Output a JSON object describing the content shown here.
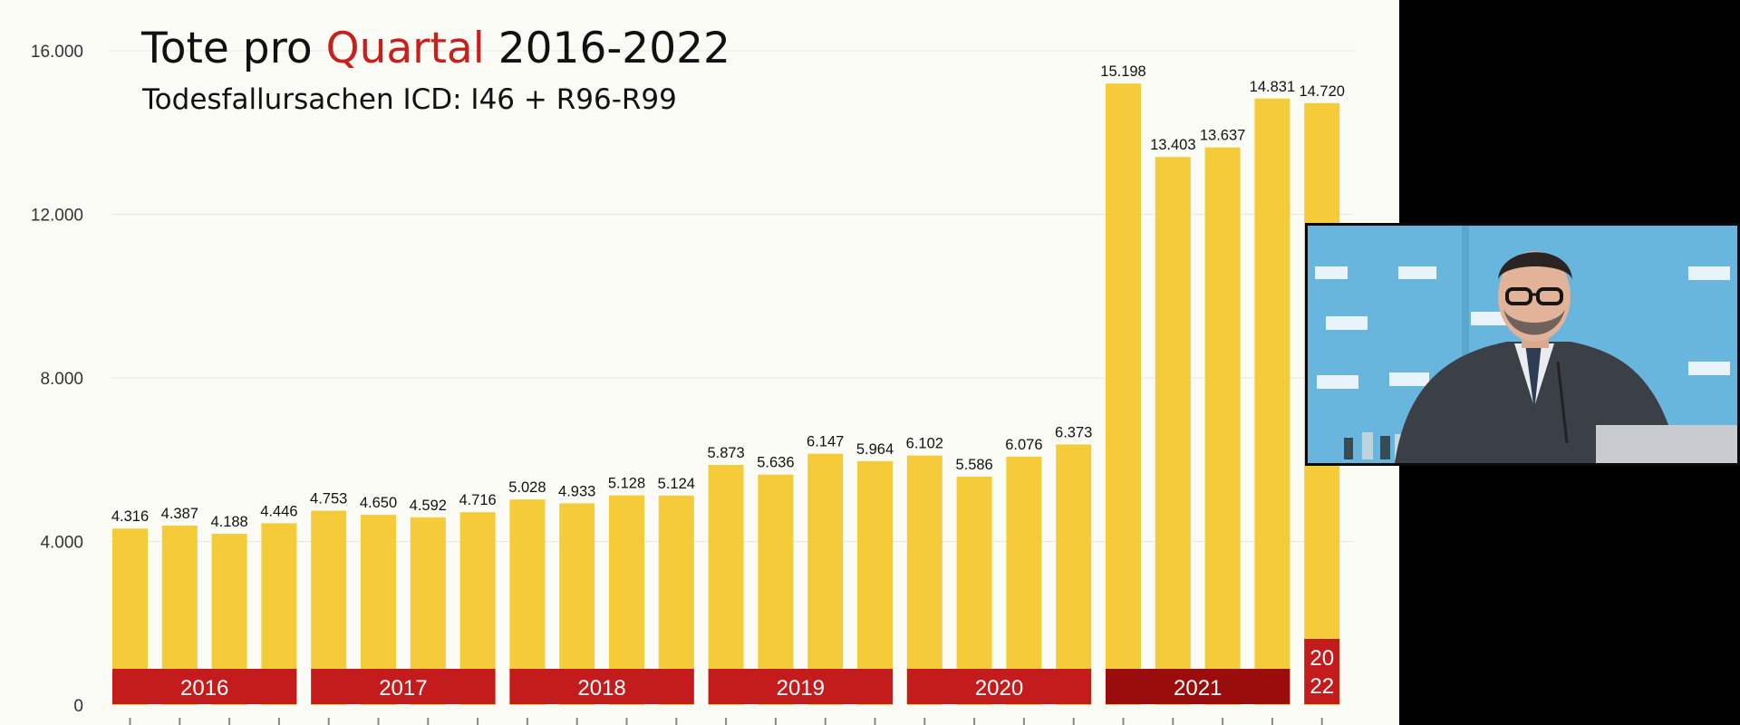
{
  "chart_data": {
    "type": "bar",
    "title_parts": [
      "Tote pro ",
      "Quartal",
      " 2016-2022"
    ],
    "subtitle": "Todesfallursachen ICD: I46 + R96-R99",
    "ylim": [
      0,
      16000
    ],
    "yticks": [
      {
        "value": 0,
        "label": "0"
      },
      {
        "value": 4000,
        "label": "4.000"
      },
      {
        "value": 8000,
        "label": "8.000"
      },
      {
        "value": 12000,
        "label": "12.000"
      },
      {
        "value": 16000,
        "label": "16.000"
      }
    ],
    "grid": true,
    "values": [
      4316,
      4387,
      4188,
      4446,
      4753,
      4650,
      4592,
      4716,
      5028,
      4933,
      5128,
      5124,
      5873,
      5636,
      6147,
      5964,
      6102,
      5586,
      6076,
      6373,
      15198,
      13403,
      13637,
      14831,
      14720
    ],
    "value_labels": [
      "4.316",
      "4.387",
      "4.188",
      "4.446",
      "4.753",
      "4.650",
      "4.592",
      "4.716",
      "5.028",
      "4.933",
      "5.128",
      "5.124",
      "5.873",
      "5.636",
      "6.147",
      "5.964",
      "6.102",
      "5.586",
      "6.076",
      "6.373",
      "15.198",
      "13.403",
      "13.637",
      "14.831",
      "14.720"
    ],
    "year_groups": [
      {
        "label": "2016",
        "bars": 4
      },
      {
        "label": "2017",
        "bars": 4
      },
      {
        "label": "2018",
        "bars": 4
      },
      {
        "label": "2019",
        "bars": 4
      },
      {
        "label": "2020",
        "bars": 4
      },
      {
        "label": "2021",
        "bars": 4
      },
      {
        "label_lines": [
          "20",
          "22"
        ],
        "bars": 1
      }
    ],
    "colors": {
      "bar": "#f5cb3a",
      "year_band": "#c41c1c",
      "year_band_2021": "#9b0d0d",
      "title_highlight": "#c8201c",
      "gridline": "#e8e8e0"
    }
  }
}
